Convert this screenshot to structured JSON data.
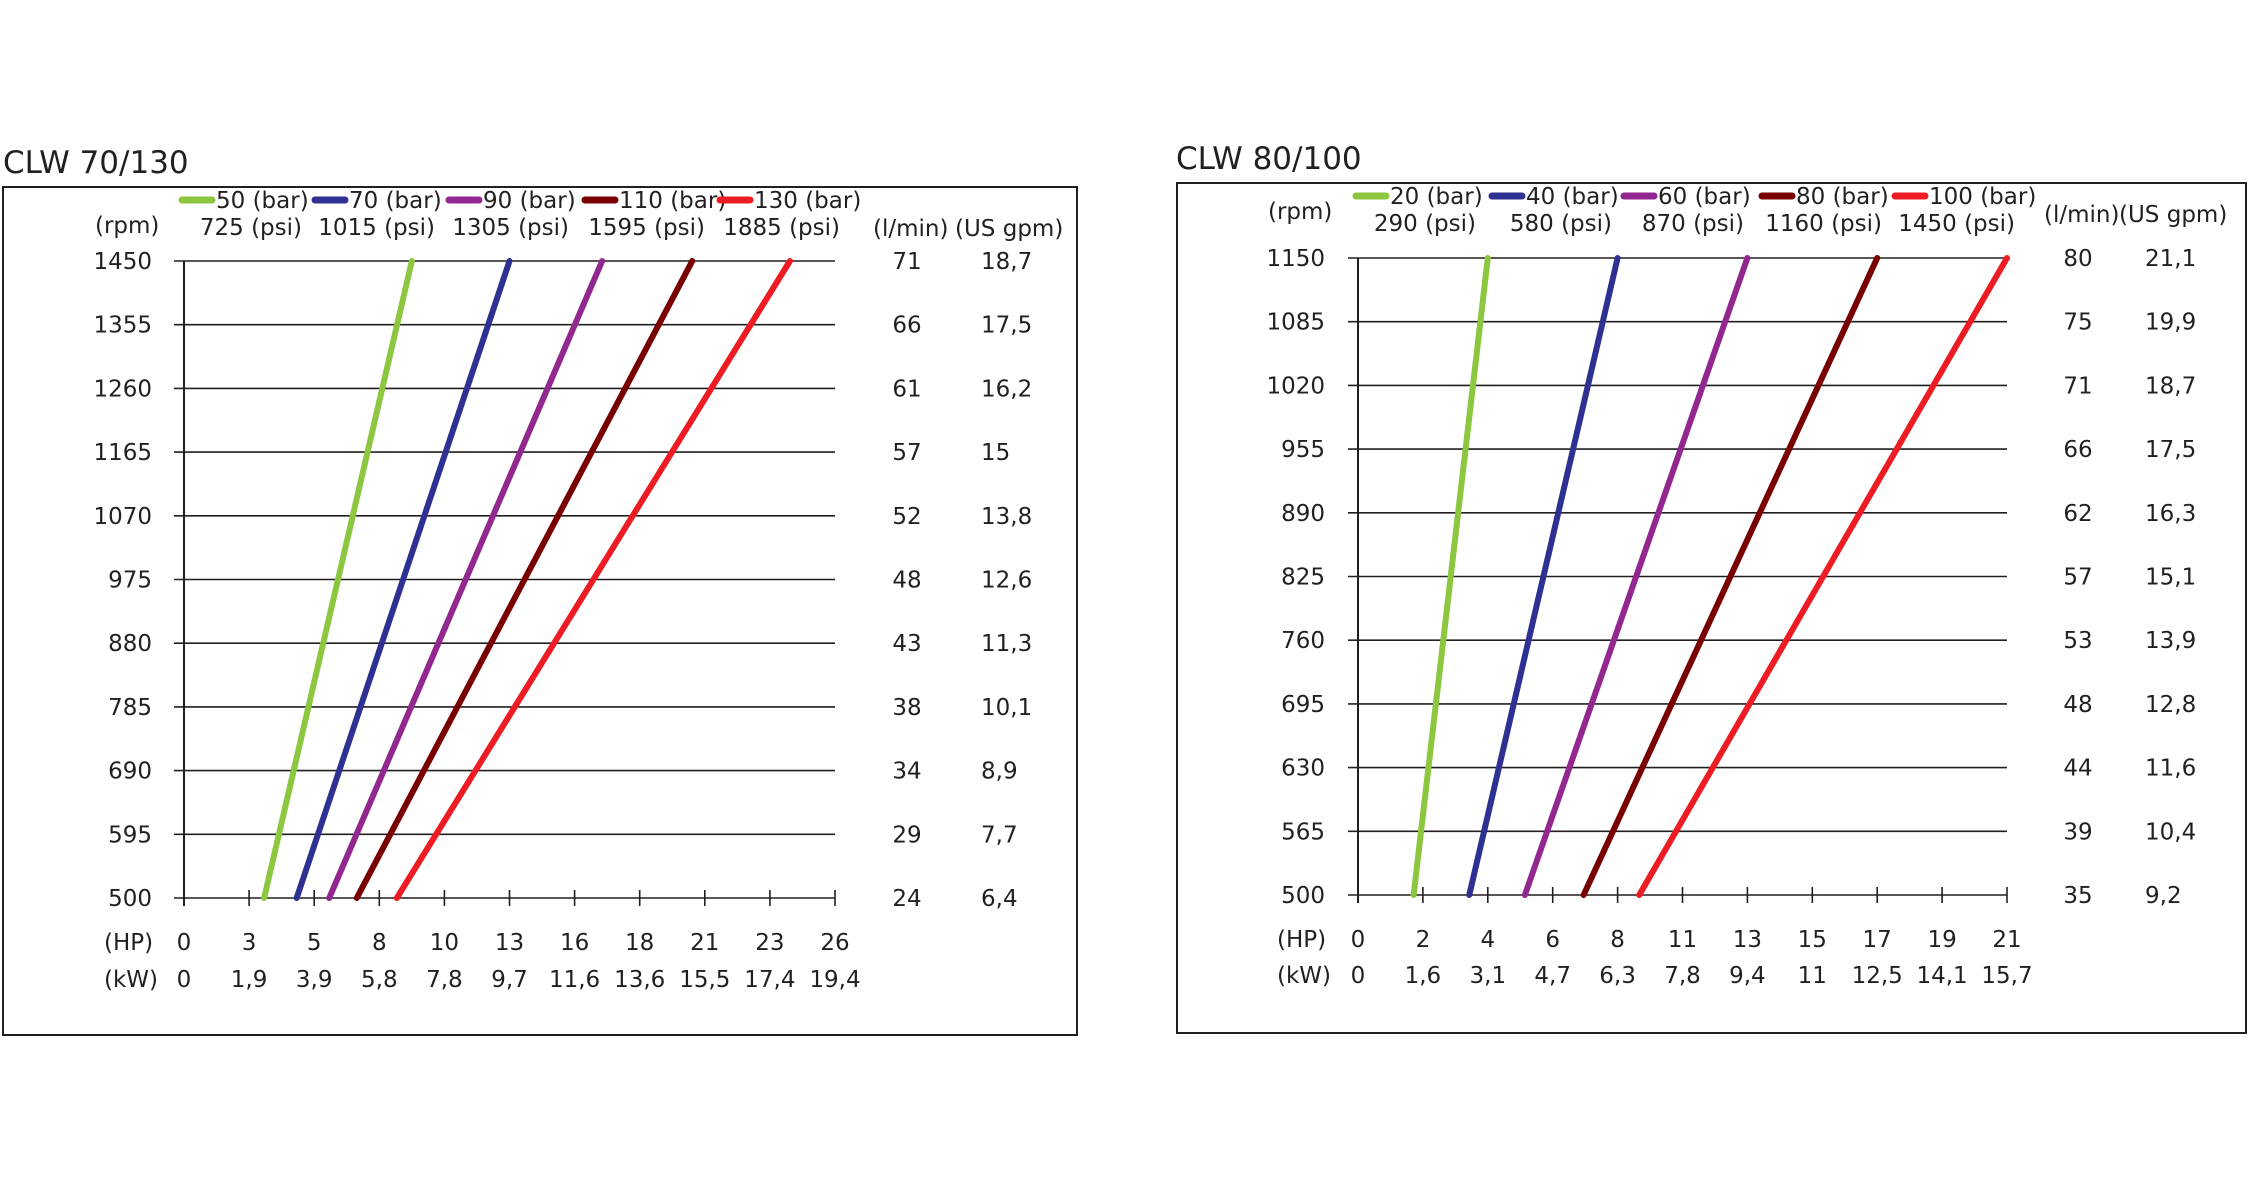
{
  "chart_data": [
    {
      "type": "line",
      "title": "CLW 70/130",
      "y_left_unit": "(rpm)",
      "y_right_units": [
        "(l/min)",
        "(US gpm)"
      ],
      "x_units": [
        "(HP)",
        "(kW)"
      ],
      "rpm_ticks": [
        "1450",
        "1355",
        "1260",
        "1165",
        "1070",
        "975",
        "880",
        "785",
        "690",
        "595",
        "500"
      ],
      "lmin_ticks": [
        "71",
        "66",
        "61",
        "57",
        "52",
        "48",
        "43",
        "38",
        "34",
        "29",
        "24"
      ],
      "gpm_ticks": [
        "18,7",
        "17,5",
        "16,2",
        "15",
        "13,8",
        "12,6",
        "11,3",
        "10,1",
        "8,9",
        "7,7",
        "6,4"
      ],
      "hp_ticks": [
        "0",
        "3",
        "5",
        "8",
        "10",
        "13",
        "16",
        "18",
        "21",
        "23",
        "26"
      ],
      "kw_ticks": [
        "0",
        "1,9",
        "3,9",
        "5,8",
        "7,8",
        "9,7",
        "11,6",
        "13,6",
        "15,5",
        "17,4",
        "19,4"
      ],
      "hp_range": [
        0,
        26
      ],
      "rpm_range": [
        500,
        1450
      ],
      "series": [
        {
          "name": "50 (bar)",
          "name2": "725 (psi)",
          "color": "#8dc63f",
          "x": [
            3.2,
            9.1
          ],
          "y": [
            500,
            1450
          ]
        },
        {
          "name": "70 (bar)",
          "name2": "1015 (psi)",
          "color": "#2e3192",
          "x": [
            4.5,
            13.0
          ],
          "y": [
            500,
            1450
          ]
        },
        {
          "name": "90 (bar)",
          "name2": "1305 (psi)",
          "color": "#92278f",
          "x": [
            5.8,
            16.7
          ],
          "y": [
            500,
            1450
          ]
        },
        {
          "name": "110 (bar)",
          "name2": "1595 (psi)",
          "color": "#790000",
          "x": [
            6.9,
            20.3
          ],
          "y": [
            500,
            1450
          ]
        },
        {
          "name": "130 (bar)",
          "name2": "1885 (psi)",
          "color": "#ed1c24",
          "x": [
            8.5,
            24.2
          ],
          "y": [
            500,
            1450
          ]
        }
      ],
      "grid": true
    },
    {
      "type": "line",
      "title": "CLW 80/100",
      "y_left_unit": "(rpm)",
      "y_right_units": [
        "(l/min)",
        "(US gpm)"
      ],
      "x_units": [
        "(HP)",
        "(kW)"
      ],
      "rpm_ticks": [
        "1150",
        "1085",
        "1020",
        "955",
        "890",
        "825",
        "760",
        "695",
        "630",
        "565",
        "500"
      ],
      "lmin_ticks": [
        "80",
        "75",
        "71",
        "66",
        "62",
        "57",
        "53",
        "48",
        "44",
        "39",
        "35"
      ],
      "gpm_ticks": [
        "21,1",
        "19,9",
        "18,7",
        "17,5",
        "16,3",
        "15,1",
        "13,9",
        "12,8",
        "11,6",
        "10,4",
        "9,2"
      ],
      "hp_ticks": [
        "0",
        "2",
        "4",
        "6",
        "8",
        "11",
        "13",
        "15",
        "17",
        "19",
        "21"
      ],
      "kw_ticks": [
        "0",
        "1,6",
        "3,1",
        "4,7",
        "6,3",
        "7,8",
        "9,4",
        "11",
        "12,5",
        "14,1",
        "15,7"
      ],
      "hp_range": [
        0,
        21
      ],
      "rpm_range": [
        500,
        1150
      ],
      "series": [
        {
          "name": "20 (bar)",
          "name2": "290 (psi)",
          "color": "#8dc63f",
          "x": [
            1.8,
            4.2
          ],
          "y": [
            500,
            1150
          ]
        },
        {
          "name": "40 (bar)",
          "name2": "580 (psi)",
          "color": "#2e3192",
          "x": [
            3.6,
            8.4
          ],
          "y": [
            500,
            1150
          ]
        },
        {
          "name": "60 (bar)",
          "name2": "870 (psi)",
          "color": "#92278f",
          "x": [
            5.4,
            12.6
          ],
          "y": [
            500,
            1150
          ]
        },
        {
          "name": "80 (bar)",
          "name2": "1160 (psi)",
          "color": "#790000",
          "x": [
            7.3,
            16.8
          ],
          "y": [
            500,
            1150
          ]
        },
        {
          "name": "100 (bar)",
          "name2": "1450 (psi)",
          "color": "#ed1c24",
          "x": [
            9.1,
            21.0
          ],
          "y": [
            500,
            1150
          ]
        }
      ],
      "grid": true
    }
  ]
}
